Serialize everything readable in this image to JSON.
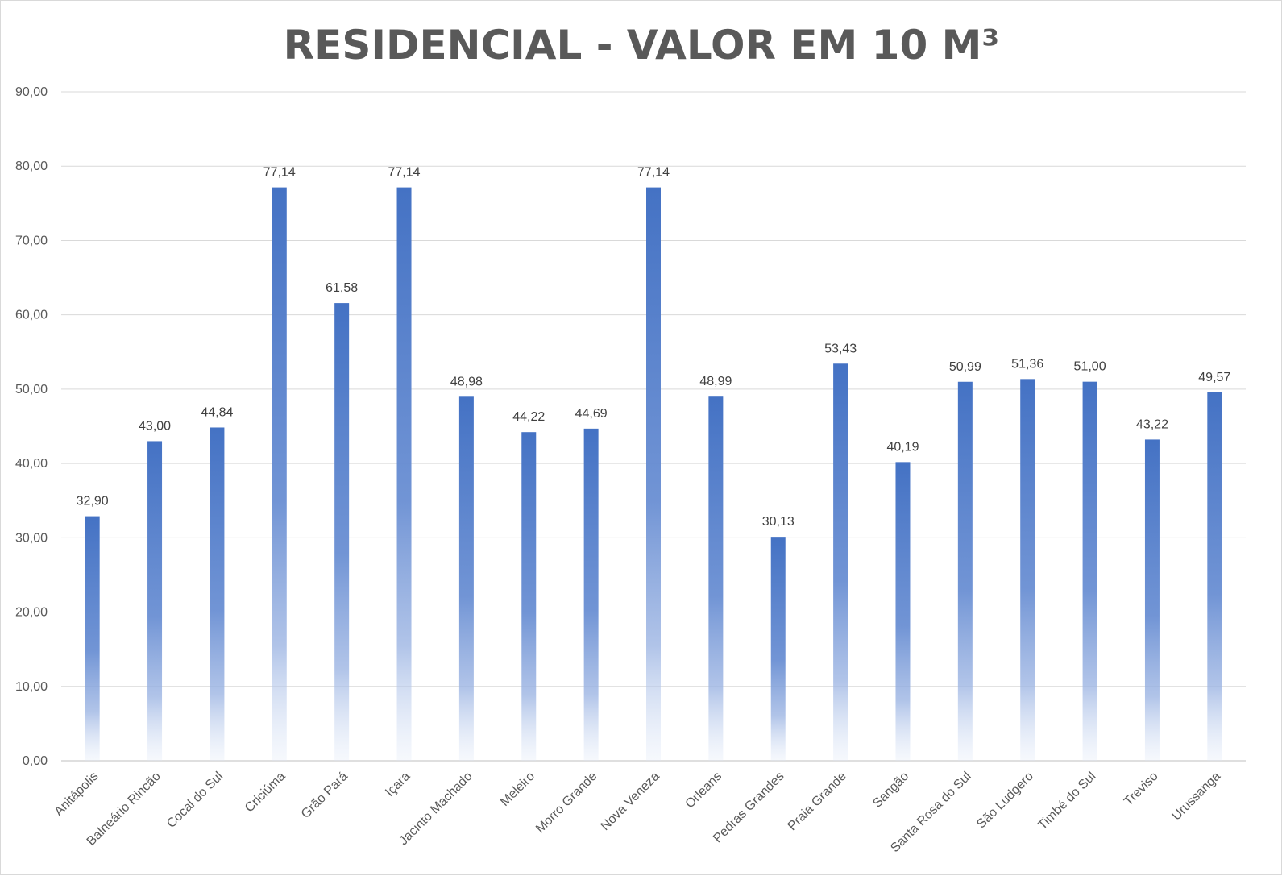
{
  "chart_data": {
    "type": "bar",
    "title": "RESIDENCIAL - VALOR EM 10 M³",
    "xlabel": "",
    "ylabel": "",
    "ylim": [
      0,
      90
    ],
    "yticks": [
      0,
      10,
      20,
      30,
      40,
      50,
      60,
      70,
      80,
      90
    ],
    "ytick_labels": [
      "0,00",
      "10,00",
      "20,00",
      "30,00",
      "40,00",
      "50,00",
      "60,00",
      "70,00",
      "80,00",
      "90,00"
    ],
    "grid": true,
    "legend": "none",
    "bar_color": "#4472c4",
    "categories": [
      "Anitápolis",
      "Balneário Rincão",
      "Cocal do Sul",
      "Criciúma",
      "Grão Pará",
      "Içara",
      "Jacinto Machado",
      "Meleiro",
      "Morro Grande",
      "Nova Veneza",
      "Orleans",
      "Pedras Grandes",
      "Praia Grande",
      "Sangão",
      "Santa Rosa do Sul",
      "São Ludgero",
      "Timbé do Sul",
      "Treviso",
      "Urussanga"
    ],
    "values": [
      32.9,
      43.0,
      44.84,
      77.14,
      61.58,
      77.14,
      48.98,
      44.22,
      44.69,
      77.14,
      48.99,
      30.13,
      53.43,
      40.19,
      50.99,
      51.36,
      51.0,
      43.22,
      49.57
    ],
    "data_labels": [
      "32,90",
      "43,00",
      "44,84",
      "77,14",
      "61,58",
      "77,14",
      "48,98",
      "44,22",
      "44,69",
      "77,14",
      "48,99",
      "30,13",
      "53,43",
      "40,19",
      "50,99",
      "51,36",
      "51,00",
      "43,22",
      "49,57"
    ]
  }
}
